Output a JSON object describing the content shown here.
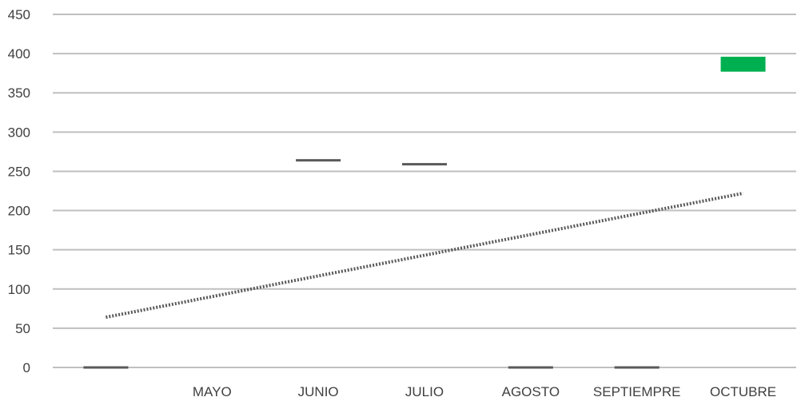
{
  "chart_data": {
    "type": "bar",
    "title": "",
    "xlabel": "",
    "ylabel": "",
    "ylim": [
      0,
      450
    ],
    "y_ticks": [
      "0",
      "50",
      "100",
      "150",
      "200",
      "250",
      "300",
      "350",
      "400",
      "450"
    ],
    "categories": [
      "",
      "MAYO",
      "JUNIO",
      "JULIO",
      "AGOSTO",
      "SEPTIEMPRE",
      "OCTUBRE"
    ],
    "floating_bars": [
      {
        "category": "",
        "low": 0,
        "high": 0
      },
      {
        "category": "MAYO",
        "low": null,
        "high": null
      },
      {
        "category": "JUNIO",
        "low": 262,
        "high": 264
      },
      {
        "category": "JULIO",
        "low": 257,
        "high": 259
      },
      {
        "category": "AGOSTO",
        "low": 0,
        "high": 0
      },
      {
        "category": "SEPTIEMPRE",
        "low": 0,
        "high": 0
      },
      {
        "category": "OCTUBRE",
        "low": 377,
        "high": 396
      }
    ],
    "trendline": {
      "style": "dotted",
      "start": 64,
      "end": 222
    },
    "grid": true,
    "legend": "none",
    "colors": {
      "up_bar": "#00b050",
      "flat_bar": "#595959",
      "trendline": "#595959",
      "grid": "#bfbfbf",
      "text": "#404040"
    }
  }
}
